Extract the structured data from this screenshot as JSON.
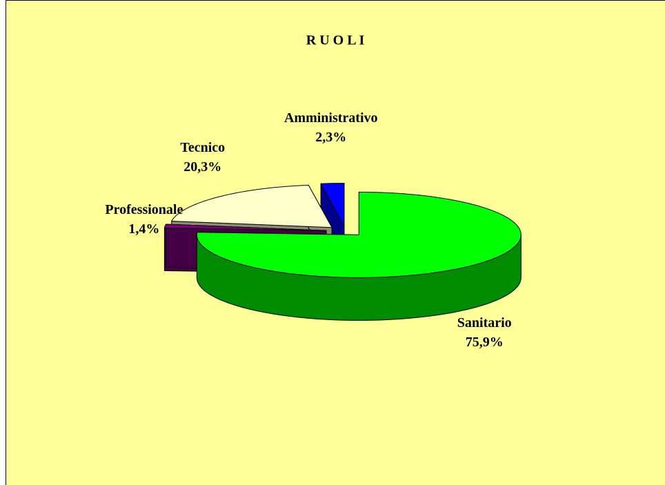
{
  "chart_data": {
    "type": "pie",
    "title": "R U O L I",
    "categories": [
      "Sanitario",
      "Professionale",
      "Tecnico",
      "Amministrativo"
    ],
    "values": [
      75.9,
      1.4,
      20.3,
      2.3
    ],
    "value_labels": [
      "75,9%",
      "1,4%",
      "20,3%",
      "2,3%"
    ],
    "colors": [
      "#00ff00",
      "#800080",
      "#ffffcc",
      "#0000ff"
    ]
  }
}
